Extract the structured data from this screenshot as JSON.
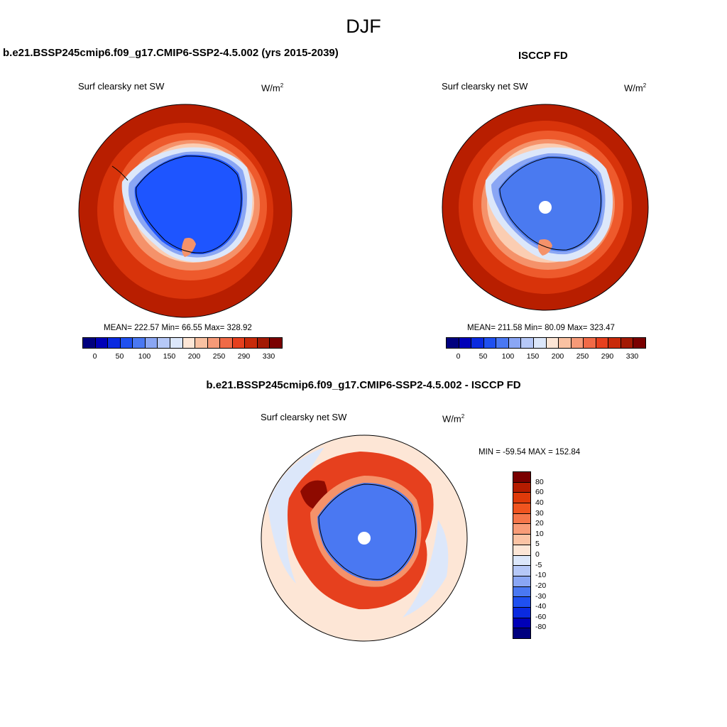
{
  "page_title": "DJF",
  "left_panel": {
    "case_title": "b.e21.BSSP245cmip6.f09_g17.CMIP6-SSP2-4.5.002 (yrs 2015-2039)",
    "variable": "Surf clearsky net SW",
    "units_base": "W/m",
    "units_exp": "2",
    "stats": "MEAN= 222.57  Min=  66.55  Max= 328.92"
  },
  "right_panel": {
    "case_title": "ISCCP FD",
    "variable": "Surf clearsky net SW",
    "units_base": "W/m",
    "units_exp": "2",
    "stats": "MEAN= 211.58  Min=  80.09  Max= 323.47"
  },
  "diff_panel": {
    "case_title": "b.e21.BSSP245cmip6.f09_g17.CMIP6-SSP2-4.5.002 - ISCCP FD",
    "variable": "Surf clearsky net SW",
    "units_base": "W/m",
    "units_exp": "2",
    "minmax": "MIN = -59.54 MAX = 152.84"
  },
  "abs_colorbar": {
    "colors": [
      "#00007f",
      "#0000b8",
      "#0a2ae0",
      "#1f50f0",
      "#4a78f2",
      "#8aa6f4",
      "#b6c8f7",
      "#dce7fa",
      "#fde6d6",
      "#f9c1a2",
      "#f69a78",
      "#f06a47",
      "#e6401e",
      "#c82a0a",
      "#a31a04",
      "#7a0000"
    ],
    "ticks": [
      "0",
      "50",
      "100",
      "150",
      "200",
      "250",
      "290",
      "330"
    ]
  },
  "diff_colorbar": {
    "colors": [
      "#7a0000",
      "#b51c00",
      "#df3a0a",
      "#f0541f",
      "#f5764a",
      "#f89c78",
      "#fbc3a4",
      "#fde6d6",
      "#dce7fa",
      "#b6c8f7",
      "#8aa6f4",
      "#4a78f2",
      "#1f50f0",
      "#0a2ae0",
      "#0000b8",
      "#00007f"
    ],
    "labels": [
      "80",
      "60",
      "40",
      "30",
      "20",
      "10",
      "5",
      "0",
      "-5",
      "-10",
      "-20",
      "-30",
      "-40",
      "-60",
      "-80"
    ]
  },
  "map_colors": {
    "ocean_outer": "#b81e00",
    "ocean_mid1": "#d8330a",
    "ocean_mid2": "#ee5a2c",
    "ocean_mid3": "#f5926a",
    "ocean_inner": "#fbcdb2",
    "ice_light": "#dce7fa",
    "ice_mid": "#8aa6f4",
    "ice_blue": "#4a78f2",
    "land_left": "#1e55ff",
    "land_right": "#4a7af0",
    "diff_bg": "#fde6d6",
    "diff_light": "#dce7fa",
    "diff_red": "#e6401e",
    "diff_dark": "#8e0a00",
    "diff_orange": "#f5926a",
    "diff_land": "#4a78f2"
  }
}
